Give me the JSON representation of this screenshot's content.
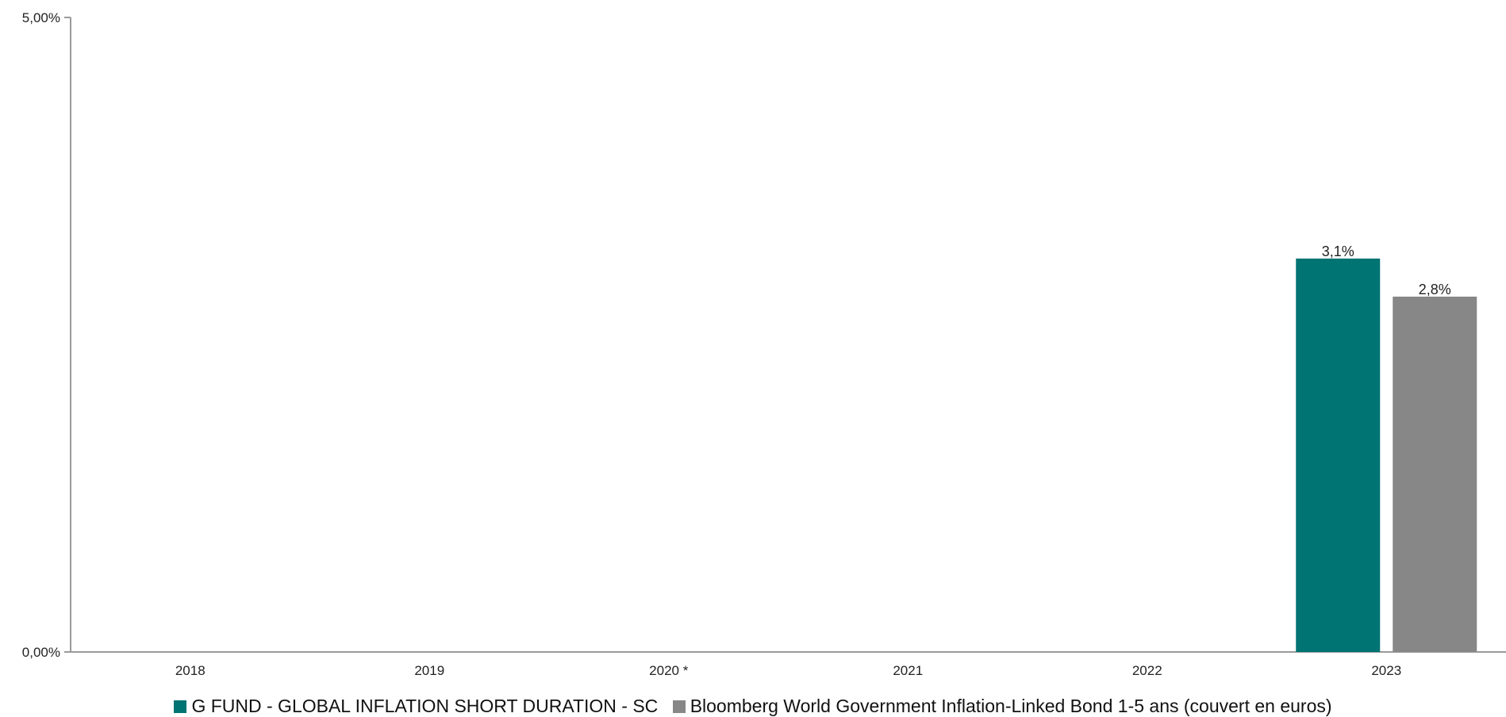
{
  "chart_data": {
    "type": "bar",
    "categories": [
      "2018",
      "2019",
      "2020 *",
      "2021",
      "2022",
      "2023"
    ],
    "series": [
      {
        "name": "G FUND - GLOBAL INFLATION SHORT DURATION - SC",
        "color": "#007373",
        "values": [
          null,
          null,
          null,
          null,
          null,
          3.1
        ],
        "labels": [
          "",
          "",
          "",
          "",
          "",
          "3,1%"
        ]
      },
      {
        "name": "Bloomberg World Government Inflation-Linked Bond 1-5 ans (couvert en euros)",
        "color": "#878787",
        "values": [
          null,
          null,
          null,
          null,
          null,
          2.8
        ],
        "labels": [
          "",
          "",
          "",
          "",
          "",
          "2,8%"
        ]
      }
    ],
    "ylim": [
      0,
      5
    ],
    "yticks": [
      {
        "value": 0,
        "label": "0,00%"
      },
      {
        "value": 5,
        "label": "5,00%"
      }
    ],
    "grid": false,
    "legend_position": "bottom"
  }
}
